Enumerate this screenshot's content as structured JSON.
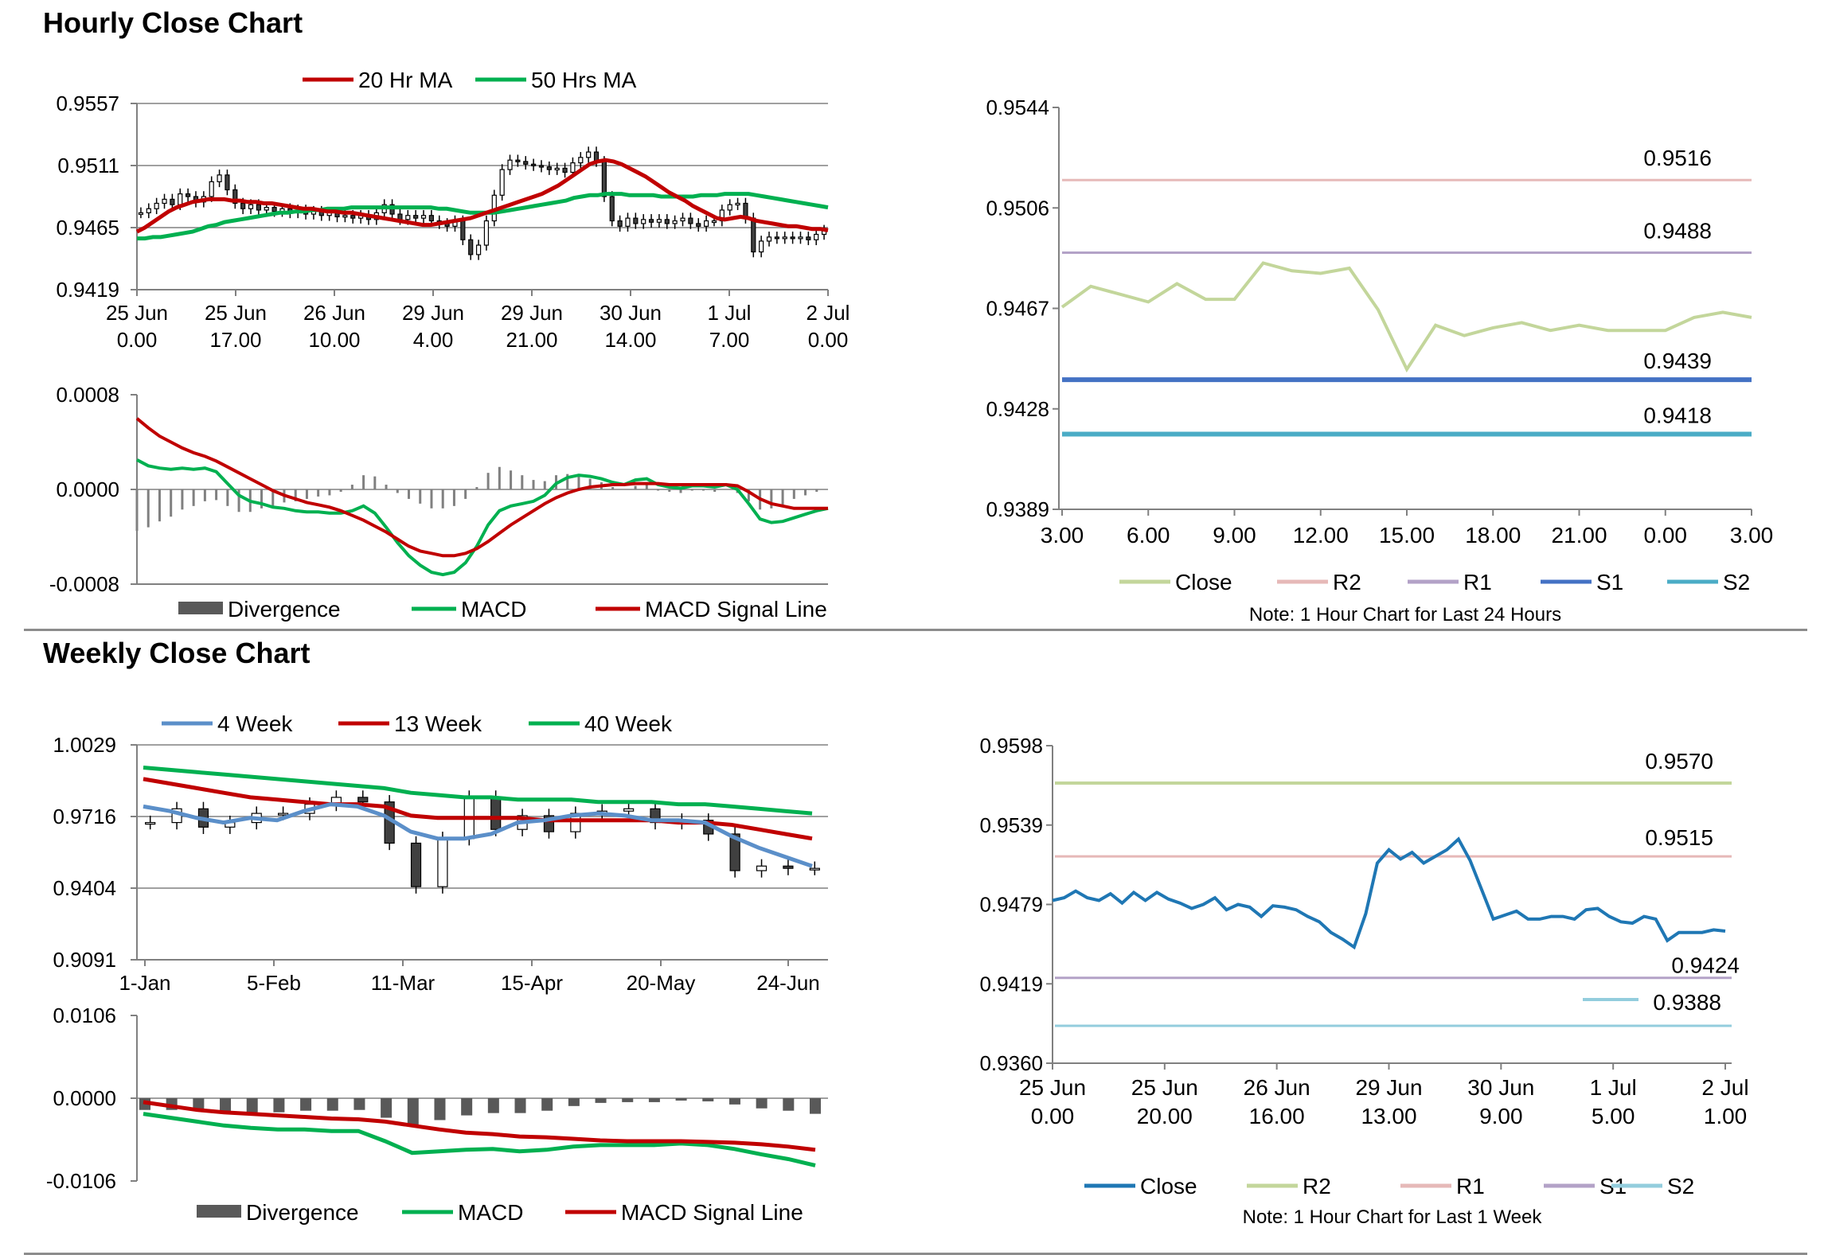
{
  "titles": {
    "hourly": "Hourly Close Chart",
    "weekly": "Weekly Close Chart"
  },
  "colors": {
    "ma_short": "#c00000",
    "ma_long": "#00b050",
    "macd": "#00b050",
    "signal": "#c00000",
    "divergence_light": "#808080",
    "divergence_dark": "#595959",
    "close_hourly_24": "#c3d69b",
    "close_weekly": "#1f77b4",
    "four_week": "#5b8fc9",
    "r2_pink": "#e6b9b8",
    "r1_purple": "#b3a2c7",
    "s1_blue": "#4472c4",
    "s2_teal": "#4bacc6",
    "r2_green": "#c3d69b",
    "s2_lightblue": "#93cddd",
    "grid": "#808080"
  },
  "chart_data": [
    {
      "id": "hourly_price",
      "type": "candlestick",
      "legend": [
        "20 Hr MA",
        "50 Hrs MA"
      ],
      "y_ticks": [
        "0.9557",
        "0.9511",
        "0.9465",
        "0.9419"
      ],
      "ylim": [
        0.9419,
        0.9557
      ],
      "x_ticks": [
        [
          "25 Jun",
          "0.00"
        ],
        [
          "25 Jun",
          "17.00"
        ],
        [
          "26 Jun",
          "10.00"
        ],
        [
          "29 Jun",
          "4.00"
        ],
        [
          "29 Jun",
          "21.00"
        ],
        [
          "30 Jun",
          "14.00"
        ],
        [
          "1 Jul",
          "7.00"
        ],
        [
          "2 Jul",
          "0.00"
        ]
      ],
      "closes": [
        0.9476,
        0.9479,
        0.9483,
        0.9486,
        0.9482,
        0.949,
        0.9488,
        0.9484,
        0.9488,
        0.9499,
        0.9504,
        0.9493,
        0.9483,
        0.9479,
        0.9482,
        0.9478,
        0.948,
        0.9477,
        0.9479,
        0.9476,
        0.9478,
        0.9475,
        0.9477,
        0.9474,
        0.9476,
        0.9473,
        0.9474,
        0.9472,
        0.9474,
        0.9471,
        0.9476,
        0.9482,
        0.9475,
        0.9471,
        0.9474,
        0.9472,
        0.9474,
        0.947,
        0.9468,
        0.9466,
        0.947,
        0.9456,
        0.9445,
        0.9452,
        0.947,
        0.9489,
        0.9508,
        0.9515,
        0.9514,
        0.9512,
        0.9511,
        0.951,
        0.9508,
        0.9509,
        0.9506,
        0.9513,
        0.9517,
        0.9521,
        0.9514,
        0.9488,
        0.947,
        0.9466,
        0.9472,
        0.9468,
        0.9471,
        0.9469,
        0.9471,
        0.9468,
        0.947,
        0.9472,
        0.9468,
        0.9466,
        0.947,
        0.947,
        0.9478,
        0.9482,
        0.9483,
        0.9472,
        0.9447,
        0.9455,
        0.9458,
        0.9457,
        0.9458,
        0.9457,
        0.9458,
        0.9456,
        0.946,
        0.9463
      ],
      "ma20": [
        0.9462,
        0.9465,
        0.9469,
        0.9473,
        0.9477,
        0.948,
        0.9482,
        0.9484,
        0.9485,
        0.9486,
        0.9486,
        0.9486,
        0.9485,
        0.9485,
        0.9484,
        0.9484,
        0.9483,
        0.9483,
        0.9482,
        0.9481,
        0.948,
        0.9479,
        0.9479,
        0.9478,
        0.9477,
        0.9477,
        0.9476,
        0.9476,
        0.9475,
        0.9474,
        0.9473,
        0.9472,
        0.9471,
        0.947,
        0.9469,
        0.9468,
        0.9467,
        0.9467,
        0.9468,
        0.9469,
        0.947,
        0.9471,
        0.9472,
        0.9474,
        0.9476,
        0.9478,
        0.948,
        0.9482,
        0.9484,
        0.9486,
        0.9488,
        0.949,
        0.9493,
        0.9496,
        0.95,
        0.9504,
        0.9508,
        0.9512,
        0.9514,
        0.9515,
        0.9514,
        0.9512,
        0.9509,
        0.9506,
        0.9503,
        0.9499,
        0.9495,
        0.9491,
        0.9488,
        0.9485,
        0.9481,
        0.9478,
        0.9475,
        0.9472,
        0.9471,
        0.9472,
        0.9473,
        0.9472,
        0.947,
        0.9469,
        0.9468,
        0.9467,
        0.9466,
        0.9466,
        0.9465,
        0.9464,
        0.9464,
        0.9463
      ],
      "ma50": [
        0.9457,
        0.9457,
        0.9458,
        0.9458,
        0.9459,
        0.946,
        0.9461,
        0.9462,
        0.9464,
        0.9466,
        0.9467,
        0.9469,
        0.947,
        0.9471,
        0.9472,
        0.9473,
        0.9474,
        0.9475,
        0.9476,
        0.9476,
        0.9477,
        0.9477,
        0.9478,
        0.9478,
        0.9479,
        0.9479,
        0.9479,
        0.948,
        0.948,
        0.948,
        0.948,
        0.948,
        0.948,
        0.948,
        0.948,
        0.948,
        0.948,
        0.948,
        0.9479,
        0.9479,
        0.9478,
        0.9477,
        0.9476,
        0.9476,
        0.9476,
        0.9476,
        0.9477,
        0.9478,
        0.9479,
        0.948,
        0.9481,
        0.9482,
        0.9483,
        0.9484,
        0.9485,
        0.9487,
        0.9488,
        0.9489,
        0.9489,
        0.949,
        0.949,
        0.949,
        0.9489,
        0.9489,
        0.9489,
        0.9489,
        0.9488,
        0.9488,
        0.9488,
        0.9488,
        0.9488,
        0.9489,
        0.9489,
        0.9489,
        0.949,
        0.949,
        0.949,
        0.949,
        0.9489,
        0.9488,
        0.9487,
        0.9486,
        0.9485,
        0.9484,
        0.9483,
        0.9482,
        0.9481,
        0.948
      ]
    },
    {
      "id": "hourly_macd",
      "type": "line+bar",
      "legend": [
        "Divergence",
        "MACD",
        "MACD Signal Line"
      ],
      "y_ticks": [
        "0.0008",
        "0.0000",
        "-0.0008"
      ],
      "ylim": [
        -0.0008,
        0.0008
      ],
      "macd": [
        0.00025,
        0.0002,
        0.00018,
        0.00017,
        0.00018,
        0.00017,
        0.00018,
        0.00015,
        5e-05,
        -5e-05,
        -0.0001,
        -0.00012,
        -0.00015,
        -0.00016,
        -0.00018,
        -0.00019,
        -0.00019,
        -0.0002,
        -0.0002,
        -0.00018,
        -0.00014,
        -0.0002,
        -0.00032,
        -0.00045,
        -0.00056,
        -0.00064,
        -0.0007,
        -0.00072,
        -0.0007,
        -0.00062,
        -0.00048,
        -0.0003,
        -0.00018,
        -0.00014,
        -0.00012,
        -0.0001,
        -5e-05,
        5e-05,
        0.0001,
        0.00012,
        0.00011,
        9e-05,
        6e-05,
        4e-05,
        8e-05,
        9e-05,
        4e-05,
        2e-05,
        1e-05,
        3e-05,
        3e-05,
        2e-05,
        4e-05,
        0.0,
        -0.00012,
        -0.00025,
        -0.00028,
        -0.00027,
        -0.00024,
        -0.00021,
        -0.00018,
        -0.00016
      ],
      "signal": [
        0.0006,
        0.00052,
        0.00045,
        0.0004,
        0.00035,
        0.00031,
        0.00028,
        0.00024,
        0.00019,
        0.00014,
        9e-05,
        4e-05,
        -1e-05,
        -5e-05,
        -8e-05,
        -0.00011,
        -0.00013,
        -0.00015,
        -0.00018,
        -0.00022,
        -0.00026,
        -0.00031,
        -0.00036,
        -0.00042,
        -0.00048,
        -0.00052,
        -0.00054,
        -0.00056,
        -0.00056,
        -0.00054,
        -0.0005,
        -0.00044,
        -0.00037,
        -0.0003,
        -0.00024,
        -0.00018,
        -0.00012,
        -7e-05,
        -3e-05,
        0.0,
        2e-05,
        3e-05,
        4e-05,
        4e-05,
        5e-05,
        5e-05,
        5e-05,
        4e-05,
        4e-05,
        4e-05,
        4e-05,
        4e-05,
        4e-05,
        3e-05,
        -2e-05,
        -8e-05,
        -0.00012,
        -0.00014,
        -0.00016,
        -0.00016,
        -0.00016,
        -0.00016
      ]
    },
    {
      "id": "hourly_24h",
      "type": "line",
      "note": "Note: 1 Hour Chart for Last 24 Hours",
      "legend": [
        "Close",
        "R2",
        "R1",
        "S1",
        "S2"
      ],
      "y_ticks": [
        "0.9544",
        "0.9506",
        "0.9467",
        "0.9428",
        "0.9389"
      ],
      "ylim": [
        0.9389,
        0.9544
      ],
      "x_ticks": [
        "3.00",
        "6.00",
        "9.00",
        "12.00",
        "15.00",
        "18.00",
        "21.00",
        "0.00",
        "3.00"
      ],
      "close": [
        0.9467,
        0.9475,
        0.9472,
        0.9469,
        0.9476,
        0.947,
        0.947,
        0.9484,
        0.9481,
        0.948,
        0.9482,
        0.9466,
        0.9443,
        0.946,
        0.9456,
        0.9459,
        0.9461,
        0.9458,
        0.946,
        0.9458,
        0.9458,
        0.9458,
        0.9463,
        0.9465,
        0.9463
      ],
      "levels": [
        {
          "name": "R2",
          "value": 0.9516,
          "label": "0.9516"
        },
        {
          "name": "R1",
          "value": 0.9488,
          "label": "0.9488"
        },
        {
          "name": "S1",
          "value": 0.9439,
          "label": "0.9439"
        },
        {
          "name": "S2",
          "value": 0.9418,
          "label": "0.9418"
        }
      ]
    },
    {
      "id": "weekly_price",
      "type": "candlestick",
      "legend": [
        "4 Week",
        "13 Week",
        "40 Week"
      ],
      "y_ticks": [
        "1.0029",
        "0.9716",
        "0.9404",
        "0.9091"
      ],
      "ylim": [
        0.9091,
        1.0029
      ],
      "x_ticks": [
        "1-Jan",
        "5-Feb",
        "11-Mar",
        "15-Apr",
        "20-May",
        "24-Jun"
      ],
      "closes": [
        0.969,
        0.975,
        0.967,
        0.969,
        0.973,
        0.973,
        0.977,
        0.98,
        0.978,
        0.96,
        0.941,
        0.962,
        0.98,
        0.966,
        0.972,
        0.965,
        0.973,
        0.974,
        0.975,
        0.969,
        0.97,
        0.964,
        0.948,
        0.95,
        0.949,
        0.949
      ],
      "wk4": [
        0.976,
        0.974,
        0.971,
        0.969,
        0.971,
        0.97,
        0.974,
        0.977,
        0.976,
        0.972,
        0.965,
        0.962,
        0.962,
        0.964,
        0.969,
        0.97,
        0.972,
        0.973,
        0.972,
        0.97,
        0.97,
        0.969,
        0.963,
        0.958,
        0.954,
        0.95
      ],
      "wk13": [
        0.988,
        0.986,
        0.984,
        0.982,
        0.98,
        0.979,
        0.978,
        0.977,
        0.977,
        0.976,
        0.972,
        0.971,
        0.971,
        0.971,
        0.971,
        0.97,
        0.97,
        0.97,
        0.97,
        0.97,
        0.969,
        0.969,
        0.968,
        0.966,
        0.964,
        0.962
      ],
      "wk40": [
        0.993,
        0.992,
        0.991,
        0.99,
        0.989,
        0.988,
        0.987,
        0.986,
        0.985,
        0.984,
        0.982,
        0.981,
        0.98,
        0.98,
        0.979,
        0.979,
        0.979,
        0.978,
        0.978,
        0.978,
        0.977,
        0.977,
        0.976,
        0.975,
        0.974,
        0.973
      ]
    },
    {
      "id": "weekly_macd",
      "type": "line+bar",
      "legend": [
        "Divergence",
        "MACD",
        "MACD Signal Line"
      ],
      "y_ticks": [
        "0.0106",
        "0.0000",
        "-0.0106"
      ],
      "ylim": [
        -0.0106,
        0.0106
      ],
      "macd": [
        -0.002,
        -0.0025,
        -0.003,
        -0.0035,
        -0.0038,
        -0.004,
        -0.004,
        -0.0042,
        -0.0042,
        -0.0055,
        -0.007,
        -0.0068,
        -0.0066,
        -0.0065,
        -0.0068,
        -0.0066,
        -0.0062,
        -0.006,
        -0.006,
        -0.006,
        -0.0058,
        -0.006,
        -0.0065,
        -0.0072,
        -0.0078,
        -0.0086
      ],
      "signal": [
        -0.0005,
        -0.001,
        -0.0015,
        -0.0018,
        -0.002,
        -0.0022,
        -0.0024,
        -0.0026,
        -0.0027,
        -0.003,
        -0.0035,
        -0.004,
        -0.0044,
        -0.0046,
        -0.0049,
        -0.005,
        -0.0052,
        -0.0054,
        -0.0055,
        -0.0055,
        -0.0055,
        -0.0056,
        -0.0057,
        -0.0059,
        -0.0062,
        -0.0066
      ]
    },
    {
      "id": "weekly_1h",
      "type": "line",
      "note": "Note: 1 Hour Chart for Last 1 Week",
      "legend": [
        "Close",
        "R2",
        "R1",
        "S1",
        "S2"
      ],
      "y_ticks": [
        "0.9598",
        "0.9539",
        "0.9479",
        "0.9419",
        "0.9360"
      ],
      "ylim": [
        0.936,
        0.9598
      ],
      "x_ticks": [
        [
          "25 Jun",
          "0.00"
        ],
        [
          "25 Jun",
          "20.00"
        ],
        [
          "26 Jun",
          "16.00"
        ],
        [
          "29 Jun",
          "13.00"
        ],
        [
          "30 Jun",
          "9.00"
        ],
        [
          "1 Jul",
          "5.00"
        ],
        [
          "2 Jul",
          "1.00"
        ]
      ],
      "close": [
        0.9482,
        0.9484,
        0.9489,
        0.9484,
        0.9482,
        0.9487,
        0.948,
        0.9488,
        0.9482,
        0.9488,
        0.9483,
        0.948,
        0.9476,
        0.9479,
        0.9484,
        0.9475,
        0.9479,
        0.9477,
        0.947,
        0.9478,
        0.9477,
        0.9475,
        0.947,
        0.9466,
        0.9458,
        0.9453,
        0.9447,
        0.9472,
        0.951,
        0.952,
        0.9513,
        0.9518,
        0.951,
        0.9515,
        0.952,
        0.9528,
        0.9512,
        0.949,
        0.9468,
        0.9471,
        0.9474,
        0.9468,
        0.9468,
        0.947,
        0.947,
        0.9468,
        0.9475,
        0.9476,
        0.947,
        0.9466,
        0.9465,
        0.947,
        0.9468,
        0.9452,
        0.9458,
        0.9458,
        0.9458,
        0.946,
        0.9459
      ],
      "levels": [
        {
          "name": "R2",
          "value": 0.957,
          "label": "0.9570"
        },
        {
          "name": "R1",
          "value": 0.9515,
          "label": "0.9515"
        },
        {
          "name": "S1",
          "value": 0.9424,
          "label": "0.9424"
        },
        {
          "name": "S2",
          "value": 0.9388,
          "label": "0.9388"
        }
      ]
    }
  ]
}
